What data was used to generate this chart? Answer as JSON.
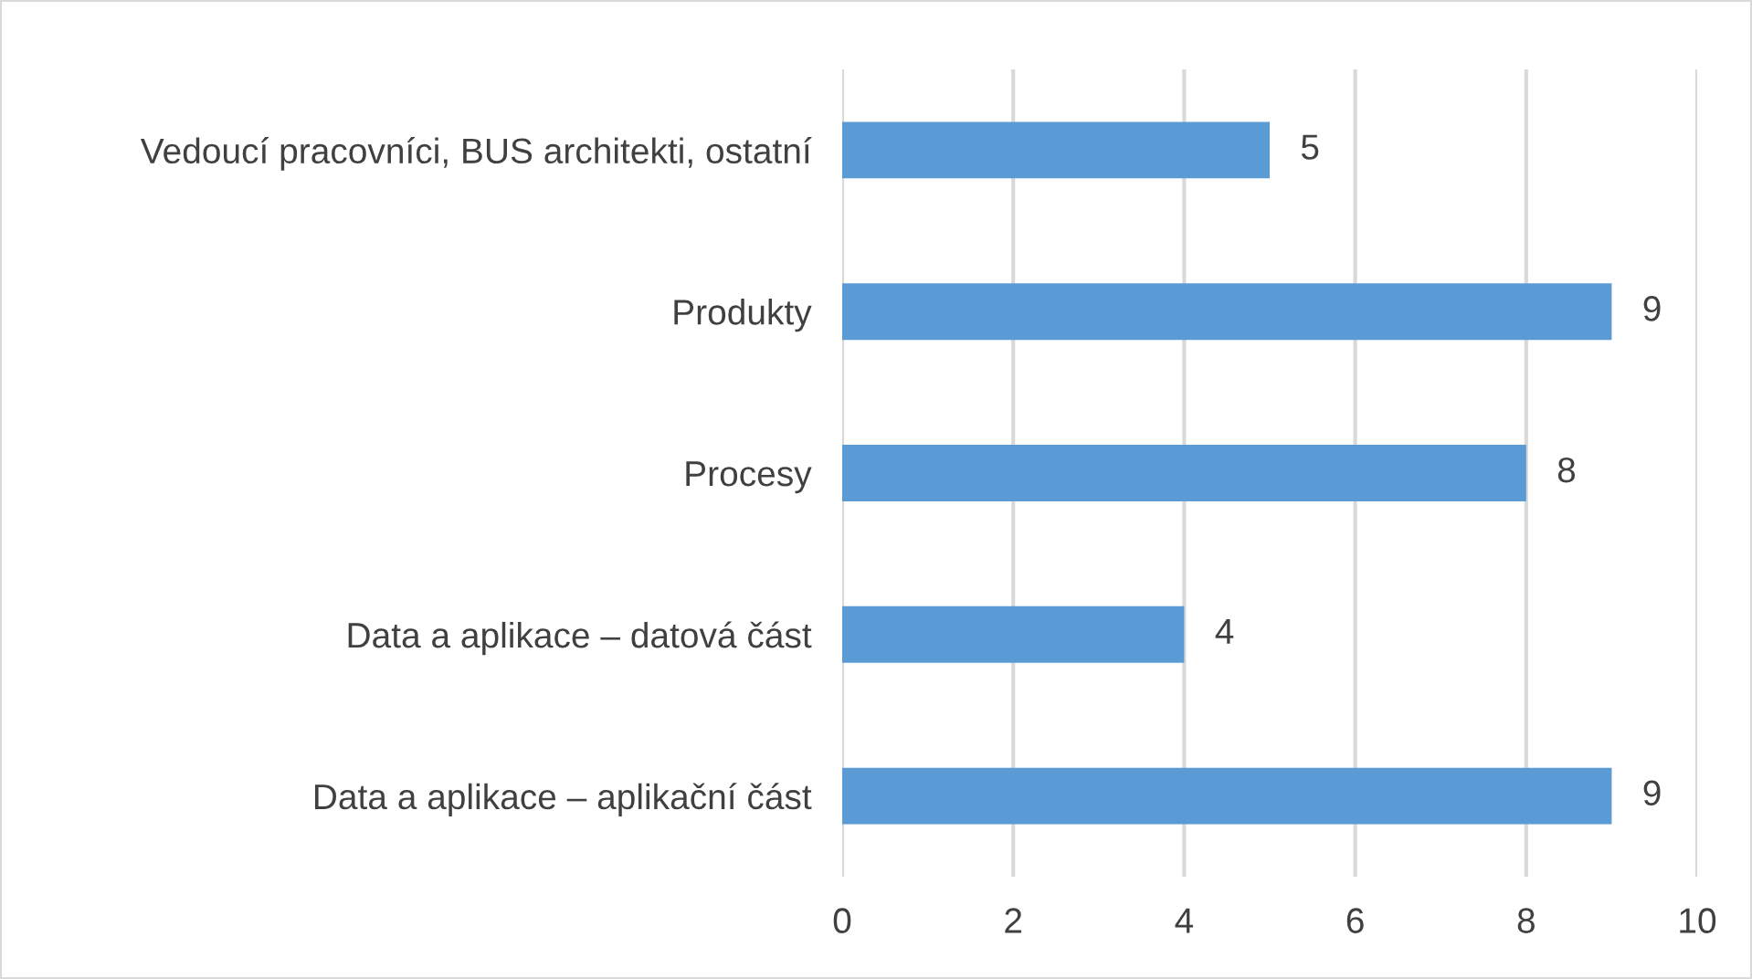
{
  "chart_data": {
    "type": "bar",
    "orientation": "horizontal",
    "categories": [
      "Vedoucí pracovníci, BUS architekti, ostatní",
      "Produkty",
      "Procesy",
      "Data a aplikace – datová část",
      "Data a aplikace – aplikační část"
    ],
    "values": [
      5,
      9,
      8,
      4,
      9
    ],
    "color": "#5b9bd5",
    "xlim": [
      0,
      10
    ],
    "xticks": [
      0,
      2,
      4,
      6,
      8,
      10
    ],
    "grid": "x",
    "data_labels": true,
    "legend": false
  }
}
